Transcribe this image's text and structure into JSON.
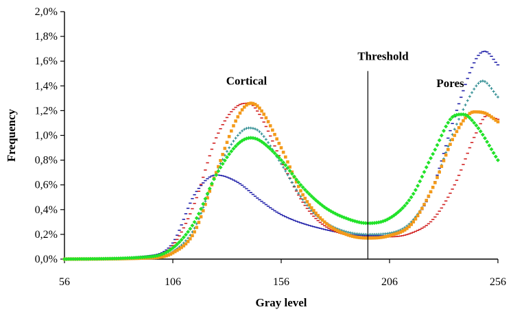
{
  "chart_data": {
    "type": "scatter",
    "xlabel": "Gray level",
    "ylabel": "Frequency",
    "xlim": [
      56,
      256
    ],
    "ylim": [
      0,
      0.02
    ],
    "x_ticks": [
      56,
      106,
      156,
      206,
      256
    ],
    "y_ticks": [
      0,
      0.002,
      0.004,
      0.006,
      0.008,
      0.01,
      0.012,
      0.014,
      0.016,
      0.018,
      0.02
    ],
    "x_tick_labels": [
      "56",
      "106",
      "156",
      "206",
      "256"
    ],
    "y_tick_labels": [
      "0,0%",
      "0,2%",
      "0,4%",
      "0,6%",
      "0,8%",
      "1,0%",
      "1,2%",
      "1,4%",
      "1,6%",
      "1,8%",
      "2,0%"
    ],
    "grid": false,
    "legend": "none",
    "annotations": {
      "cortical": {
        "text": "Cortical",
        "x": 140,
        "y": 0.0141
      },
      "threshold": {
        "text": "Threshold",
        "x": 203,
        "y": 0.0161
      },
      "pores": {
        "text": "Pores",
        "x": 234,
        "y": 0.0139
      }
    },
    "threshold_line": {
      "x": 196,
      "y_top": 0.0152
    },
    "series": [
      {
        "color": "#1f1fa8",
        "marker": "dash",
        "peaks": [
          {
            "x": 56,
            "y": 0.0
          },
          {
            "x": 96,
            "y": 0.0003
          },
          {
            "x": 106,
            "y": 0.0013
          },
          {
            "x": 116,
            "y": 0.0052
          },
          {
            "x": 126,
            "y": 0.0068
          },
          {
            "x": 136,
            "y": 0.0062
          },
          {
            "x": 146,
            "y": 0.0048
          },
          {
            "x": 156,
            "y": 0.0036
          },
          {
            "x": 176,
            "y": 0.0024
          },
          {
            "x": 196,
            "y": 0.0019
          },
          {
            "x": 206,
            "y": 0.0019
          },
          {
            "x": 216,
            "y": 0.0028
          },
          {
            "x": 226,
            "y": 0.0058
          },
          {
            "x": 236,
            "y": 0.0115
          },
          {
            "x": 246,
            "y": 0.0162
          },
          {
            "x": 250,
            "y": 0.0168
          },
          {
            "x": 256,
            "y": 0.0157
          }
        ]
      },
      {
        "color": "#d11f1f",
        "marker": "dash",
        "peaks": [
          {
            "x": 56,
            "y": 0.0
          },
          {
            "x": 96,
            "y": 0.0002
          },
          {
            "x": 106,
            "y": 0.0011
          },
          {
            "x": 116,
            "y": 0.0045
          },
          {
            "x": 126,
            "y": 0.0098
          },
          {
            "x": 136,
            "y": 0.0124
          },
          {
            "x": 141,
            "y": 0.0126
          },
          {
            "x": 146,
            "y": 0.0117
          },
          {
            "x": 156,
            "y": 0.008
          },
          {
            "x": 166,
            "y": 0.0046
          },
          {
            "x": 176,
            "y": 0.0027
          },
          {
            "x": 196,
            "y": 0.0018
          },
          {
            "x": 206,
            "y": 0.0018
          },
          {
            "x": 216,
            "y": 0.0021
          },
          {
            "x": 226,
            "y": 0.0032
          },
          {
            "x": 236,
            "y": 0.006
          },
          {
            "x": 246,
            "y": 0.0102
          },
          {
            "x": 251,
            "y": 0.0116
          },
          {
            "x": 256,
            "y": 0.0113
          }
        ]
      },
      {
        "color": "#2a8a8f",
        "marker": "plus",
        "peaks": [
          {
            "x": 56,
            "y": 0.0
          },
          {
            "x": 96,
            "y": 0.0001
          },
          {
            "x": 106,
            "y": 0.0006
          },
          {
            "x": 116,
            "y": 0.0025
          },
          {
            "x": 126,
            "y": 0.007
          },
          {
            "x": 136,
            "y": 0.01
          },
          {
            "x": 141,
            "y": 0.0106
          },
          {
            "x": 146,
            "y": 0.0103
          },
          {
            "x": 156,
            "y": 0.0077
          },
          {
            "x": 166,
            "y": 0.0048
          },
          {
            "x": 176,
            "y": 0.003
          },
          {
            "x": 196,
            "y": 0.002
          },
          {
            "x": 206,
            "y": 0.0021
          },
          {
            "x": 216,
            "y": 0.003
          },
          {
            "x": 226,
            "y": 0.0058
          },
          {
            "x": 236,
            "y": 0.0105
          },
          {
            "x": 246,
            "y": 0.014
          },
          {
            "x": 249,
            "y": 0.0144
          },
          {
            "x": 256,
            "y": 0.0131
          }
        ]
      },
      {
        "color": "#f39a1a",
        "marker": "square",
        "peaks": [
          {
            "x": 56,
            "y": 0.0
          },
          {
            "x": 96,
            "y": 0.0001
          },
          {
            "x": 106,
            "y": 0.0005
          },
          {
            "x": 116,
            "y": 0.0022
          },
          {
            "x": 126,
            "y": 0.007
          },
          {
            "x": 136,
            "y": 0.0115
          },
          {
            "x": 142,
            "y": 0.0126
          },
          {
            "x": 146,
            "y": 0.0122
          },
          {
            "x": 156,
            "y": 0.009
          },
          {
            "x": 166,
            "y": 0.0052
          },
          {
            "x": 176,
            "y": 0.003
          },
          {
            "x": 186,
            "y": 0.002
          },
          {
            "x": 196,
            "y": 0.0017
          },
          {
            "x": 206,
            "y": 0.0019
          },
          {
            "x": 216,
            "y": 0.0028
          },
          {
            "x": 226,
            "y": 0.0058
          },
          {
            "x": 236,
            "y": 0.01
          },
          {
            "x": 245,
            "y": 0.0119
          },
          {
            "x": 250,
            "y": 0.0118
          },
          {
            "x": 256,
            "y": 0.0111
          }
        ]
      },
      {
        "color": "#22e22a",
        "marker": "diamond",
        "peaks": [
          {
            "x": 56,
            "y": 0.0
          },
          {
            "x": 96,
            "y": 0.0002
          },
          {
            "x": 106,
            "y": 0.0009
          },
          {
            "x": 116,
            "y": 0.003
          },
          {
            "x": 126,
            "y": 0.0068
          },
          {
            "x": 136,
            "y": 0.0093
          },
          {
            "x": 142,
            "y": 0.0098
          },
          {
            "x": 146,
            "y": 0.0096
          },
          {
            "x": 156,
            "y": 0.008
          },
          {
            "x": 166,
            "y": 0.0058
          },
          {
            "x": 176,
            "y": 0.0042
          },
          {
            "x": 186,
            "y": 0.0033
          },
          {
            "x": 196,
            "y": 0.0029
          },
          {
            "x": 206,
            "y": 0.0033
          },
          {
            "x": 216,
            "y": 0.005
          },
          {
            "x": 226,
            "y": 0.0085
          },
          {
            "x": 236,
            "y": 0.0116
          },
          {
            "x": 240,
            "y": 0.0117
          },
          {
            "x": 246,
            "y": 0.0108
          },
          {
            "x": 256,
            "y": 0.008
          }
        ]
      }
    ]
  }
}
